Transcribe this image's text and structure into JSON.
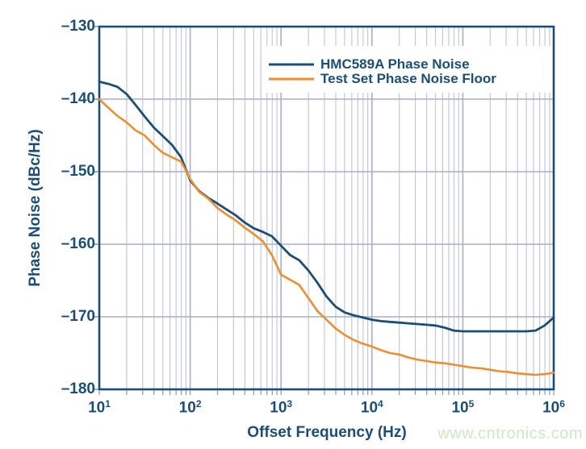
{
  "figure": {
    "watermark": "www.cntronics.com",
    "colors": {
      "background": "#ffffff",
      "navy": "#1a4e79",
      "orange": "#ef8e2c",
      "grid_minor": "#c6c8d8",
      "grid_major": "#a9aec9",
      "tick_stub": "#8d94b0",
      "watermark": "#cde9bd"
    }
  },
  "chart_data": {
    "type": "line",
    "title": "",
    "xlabel": "Offset Frequency (Hz)",
    "ylabel": "Phase Noise (dBc/Hz)",
    "x_scale": "log",
    "xlim": [
      10,
      1000000
    ],
    "ylim": [
      -180,
      -130
    ],
    "grid": "vertical log minor+major lines, horizontal major lines every 10 dB",
    "legend_position": "top-center",
    "x_ticks": [
      {
        "base": "10",
        "exp": "1"
      },
      {
        "base": "10",
        "exp": "2"
      },
      {
        "base": "10",
        "exp": "3"
      },
      {
        "base": "10",
        "exp": "4"
      },
      {
        "base": "10",
        "exp": "5"
      },
      {
        "base": "10",
        "exp": "6"
      }
    ],
    "y_ticks": [
      "–130",
      "–140",
      "–150",
      "–160",
      "–170",
      "–180"
    ],
    "series": [
      {
        "name": "HMC589A Phase Noise",
        "color": "#1a4e79",
        "x": [
          10,
          12.6,
          15.8,
          20,
          25.1,
          31.6,
          39.8,
          50.1,
          63.1,
          79.4,
          100,
          126,
          158,
          200,
          251,
          316,
          398,
          501,
          631,
          794,
          1000,
          1259,
          1585,
          1995,
          2512,
          3162,
          3981,
          5012,
          6310,
          7943,
          10000,
          12589,
          15849,
          19953,
          25119,
          31623,
          39811,
          50119,
          63096,
          79433,
          100000,
          125893,
          158489,
          199526,
          251189,
          316228,
          398107,
          501187,
          630957,
          794328,
          1000000
        ],
        "values": [
          -137.6,
          -137.9,
          -138.3,
          -139.3,
          -140.8,
          -142.4,
          -143.9,
          -145.1,
          -146.3,
          -148.0,
          -151.2,
          -152.7,
          -153.6,
          -154.4,
          -155.2,
          -156.0,
          -157.0,
          -157.8,
          -158.3,
          -158.9,
          -160.2,
          -161.5,
          -162.2,
          -163.6,
          -165.3,
          -167.2,
          -168.6,
          -169.4,
          -169.8,
          -170.1,
          -170.4,
          -170.6,
          -170.7,
          -170.8,
          -170.9,
          -171.0,
          -171.1,
          -171.2,
          -171.5,
          -171.9,
          -172.0,
          -172.0,
          -172.0,
          -172.0,
          -172.0,
          -172.0,
          -172.0,
          -172.0,
          -171.9,
          -171.2,
          -170.1
        ]
      },
      {
        "name": "Test Set Phase Noise Floor",
        "color": "#ef8e2c",
        "x": [
          10,
          12.6,
          15.8,
          20,
          25.1,
          31.6,
          39.8,
          50.1,
          63.1,
          79.4,
          100,
          126,
          158,
          200,
          251,
          316,
          398,
          501,
          631,
          794,
          1000,
          1259,
          1585,
          1995,
          2512,
          3162,
          3981,
          5012,
          6310,
          7943,
          10000,
          12589,
          15849,
          19953,
          25119,
          31623,
          39811,
          50119,
          63096,
          79433,
          100000,
          125893,
          158489,
          199526,
          251189,
          316228,
          398107,
          501187,
          630957,
          794328,
          1000000
        ],
        "values": [
          -140.0,
          -141.2,
          -142.3,
          -143.2,
          -144.3,
          -145.0,
          -146.3,
          -147.4,
          -148.0,
          -148.6,
          -151.0,
          -152.8,
          -153.7,
          -155.0,
          -155.9,
          -156.7,
          -157.7,
          -158.6,
          -159.6,
          -161.5,
          -164.2,
          -164.9,
          -165.6,
          -167.4,
          -169.2,
          -170.4,
          -171.6,
          -172.5,
          -173.2,
          -173.7,
          -174.1,
          -174.6,
          -175.0,
          -175.2,
          -175.6,
          -175.9,
          -176.1,
          -176.3,
          -176.4,
          -176.6,
          -176.8,
          -177.0,
          -177.1,
          -177.3,
          -177.5,
          -177.6,
          -177.8,
          -177.9,
          -178.0,
          -177.9,
          -177.7
        ]
      }
    ]
  }
}
